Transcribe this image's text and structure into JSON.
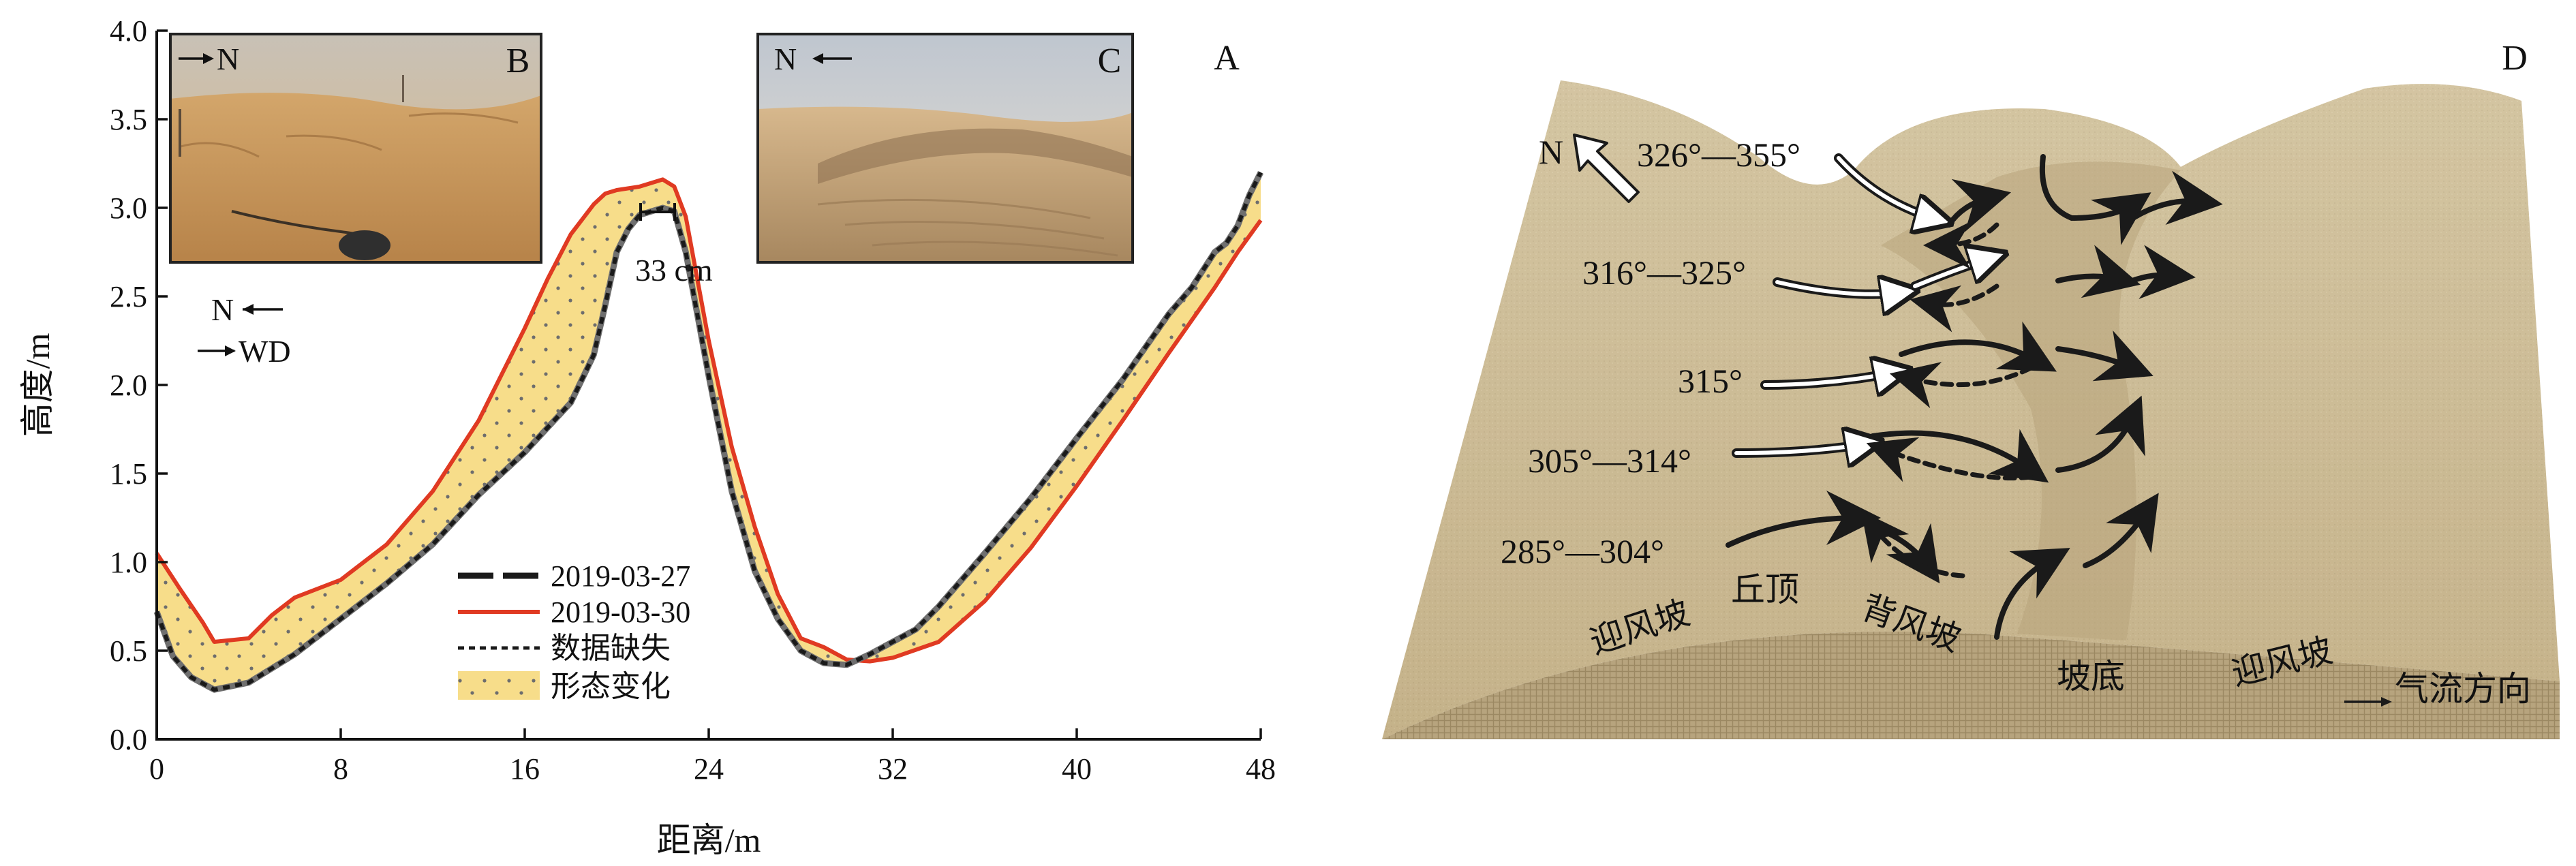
{
  "chart_data": {
    "type": "area",
    "panel_letter": "A",
    "xlabel": "距离/m",
    "ylabel": "高度/m",
    "xlim": [
      0,
      48
    ],
    "ylim": [
      0,
      4
    ],
    "x_ticks": [
      0,
      8,
      16,
      24,
      32,
      40,
      48
    ],
    "y_ticks": [
      "0.0",
      "0.5",
      "1.0",
      "1.5",
      "2.0",
      "2.5",
      "3.0",
      "3.5",
      "4.0"
    ],
    "grid": false,
    "legend_position": "bottom-center",
    "series": [
      {
        "name": "2019-03-27",
        "color": "#1a1a1a",
        "style": "long-dash",
        "x": [
          0,
          0.7,
          1.5,
          2.5,
          4,
          6,
          8,
          10,
          12,
          14,
          16,
          18,
          19,
          19.5,
          20,
          20.5,
          21,
          22,
          22.5,
          23,
          24,
          25,
          26,
          27,
          28,
          29,
          30,
          31,
          32,
          33,
          34,
          36,
          38,
          40,
          42,
          44,
          45,
          46,
          46.5,
          47,
          47.5,
          48
        ],
        "y": [
          0.72,
          0.47,
          0.35,
          0.28,
          0.32,
          0.48,
          0.68,
          0.88,
          1.1,
          1.38,
          1.62,
          1.9,
          2.17,
          2.45,
          2.75,
          2.88,
          2.96,
          3.0,
          2.98,
          2.75,
          2.05,
          1.4,
          0.95,
          0.68,
          0.5,
          0.43,
          0.42,
          0.48,
          0.55,
          0.62,
          0.75,
          1.05,
          1.36,
          1.7,
          2.03,
          2.4,
          2.55,
          2.75,
          2.8,
          2.9,
          3.07,
          3.2
        ]
      },
      {
        "name": "2019-03-30",
        "color": "#e03a22",
        "style": "solid",
        "x": [
          0,
          1,
          2,
          2.5,
          4,
          5,
          6,
          8,
          10,
          12,
          14,
          16,
          17,
          18,
          19,
          19.5,
          20,
          21,
          22,
          22.5,
          23,
          24,
          25,
          26,
          27,
          28,
          29,
          30,
          31,
          32,
          34,
          36,
          38,
          40,
          42,
          44,
          46,
          47,
          48
        ],
        "y": [
          1.05,
          0.85,
          0.66,
          0.55,
          0.57,
          0.7,
          0.8,
          0.9,
          1.1,
          1.4,
          1.8,
          2.32,
          2.6,
          2.85,
          3.02,
          3.08,
          3.1,
          3.12,
          3.16,
          3.12,
          2.95,
          2.25,
          1.65,
          1.2,
          0.82,
          0.57,
          0.52,
          0.45,
          0.44,
          0.46,
          0.55,
          0.78,
          1.08,
          1.43,
          1.8,
          2.18,
          2.55,
          2.75,
          2.93
        ]
      }
    ],
    "legend": [
      "2019-03-27",
      "2019-03-30",
      "数据缺失",
      "形态变化"
    ],
    "annotations": {
      "crest_shift": "33 cm",
      "north_arrow": "N",
      "wind_direction": "WD"
    }
  },
  "photo_b": {
    "letter": "B",
    "north": "N"
  },
  "photo_c": {
    "letter": "C",
    "north": "N"
  },
  "panel_d": {
    "letter": "D",
    "north": "N",
    "angle_labels": [
      "326°—355°",
      "316°—325°",
      "315°",
      "305°—314°",
      "285°—304°"
    ],
    "zone_labels": [
      "迎风坡",
      "丘顶",
      "背风坡",
      "坡底",
      "迎风坡"
    ],
    "airflow_legend": "气流方向"
  },
  "colors": {
    "morph_fill": "#f7dd8a",
    "sand": "#d9c9a3",
    "sand_dark": "#b9a57e"
  }
}
